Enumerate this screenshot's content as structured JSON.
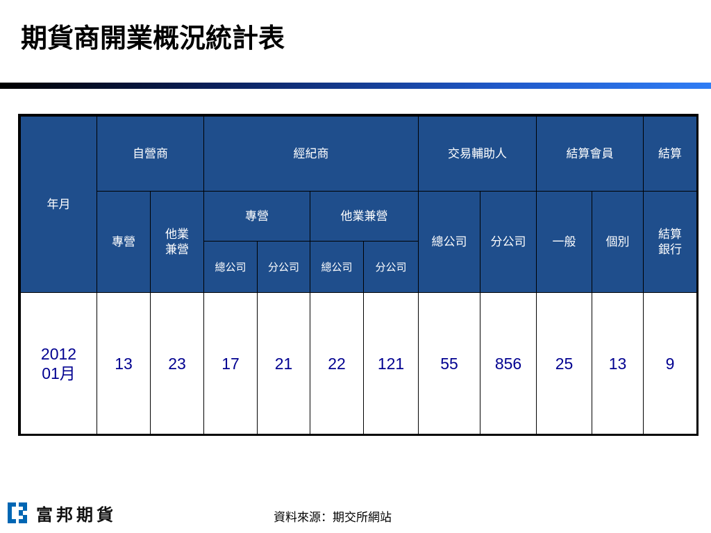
{
  "title": "期貨商開業概況統計表",
  "table": {
    "headers": {
      "year_month": "年月",
      "proprietary": "自營商",
      "brokerage": "經紀商",
      "ib": "交易輔助人",
      "clearing_member": "結算會員",
      "clearing": "結算",
      "dedicated": "專營",
      "concurrent_multiline": "他業\n兼營",
      "brokerage_dedicated": "專營",
      "brokerage_concurrent": "他業兼營",
      "ib_head_office": "總公司",
      "ib_branch": "分公司",
      "general": "一般",
      "individual": "個別",
      "clearing_bank": "結算\n銀行",
      "bd_head_office": "總公司",
      "bd_branch": "分公司",
      "bc_head_office": "總公司",
      "bc_branch": "分公司"
    },
    "row": {
      "year_month": "2012\n01月",
      "values": [
        "13",
        "23",
        "17",
        "21",
        "22",
        "121",
        "55",
        "856",
        "25",
        "13",
        "9"
      ]
    }
  },
  "footer": {
    "logo_text": "富邦期貨",
    "source": "資料來源：期交所網站"
  },
  "colors": {
    "header_bg": "#1f4e8c",
    "header_text": "#ffffff",
    "value_text": "#000090",
    "logo_accent": "#0066b3"
  }
}
